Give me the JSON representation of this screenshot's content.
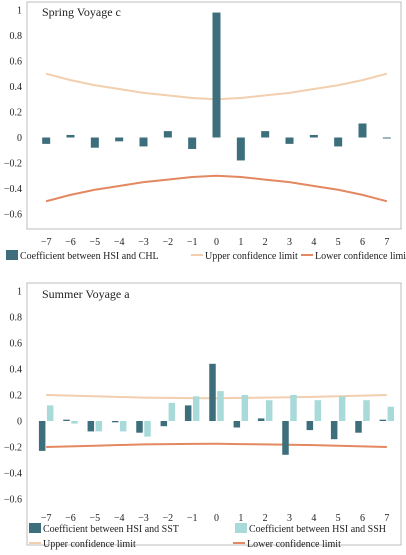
{
  "chart_data": [
    {
      "type": "bar",
      "title": "Spring Voyage c",
      "categories": [
        "−7",
        "−6",
        "−5",
        "−4",
        "−3",
        "−2",
        "−1",
        "0",
        "1",
        "2",
        "3",
        "4",
        "5",
        "6",
        "7"
      ],
      "y_ticks": [
        "−0.6",
        "−0.4",
        "−0.2",
        "0",
        "0.2",
        "0.4",
        "0.6",
        "0.8",
        "1"
      ],
      "ylim": [
        -0.6,
        1.0
      ],
      "grid": false,
      "series": [
        {
          "name": "Coefficient between HSI and CHL",
          "kind": "bar",
          "color": "#3d6e7c",
          "values": [
            -0.05,
            0.02,
            -0.08,
            -0.03,
            -0.07,
            0.05,
            -0.09,
            0.98,
            -0.18,
            0.05,
            -0.05,
            0.02,
            -0.07,
            0.11,
            0.0
          ]
        },
        {
          "name": "Upper confidence limit",
          "kind": "line",
          "color": "#f2cfae",
          "values": [
            0.5,
            0.45,
            0.41,
            0.38,
            0.35,
            0.33,
            0.31,
            0.3,
            0.31,
            0.33,
            0.35,
            0.38,
            0.41,
            0.45,
            0.5
          ]
        },
        {
          "name": "Lower confidence limit",
          "kind": "line",
          "color": "#e38860",
          "values": [
            -0.5,
            -0.45,
            -0.41,
            -0.38,
            -0.35,
            -0.33,
            -0.31,
            -0.3,
            -0.31,
            -0.33,
            -0.35,
            -0.38,
            -0.41,
            -0.45,
            -0.5
          ]
        }
      ],
      "legend": "bottom"
    },
    {
      "type": "bar",
      "title": "Summer Voyage a",
      "categories": [
        "−7",
        "−6",
        "−5",
        "−4",
        "−3",
        "−2",
        "−1",
        "0",
        "1",
        "2",
        "3",
        "4",
        "5",
        "6",
        "7"
      ],
      "y_ticks": [
        "−0.6",
        "−0.4",
        "−0.2",
        "0",
        "0.2",
        "0.4",
        "0.6",
        "0.8",
        "1"
      ],
      "ylim": [
        -0.6,
        1.0
      ],
      "grid": false,
      "series": [
        {
          "name": "Coefficient between HSI and SST",
          "kind": "bar",
          "color": "#3d6e7c",
          "values": [
            -0.23,
            0.01,
            -0.08,
            -0.01,
            -0.09,
            -0.04,
            0.12,
            0.44,
            -0.05,
            0.02,
            -0.26,
            -0.07,
            -0.14,
            -0.09,
            0.01
          ]
        },
        {
          "name": "Coefficient between HSI and SSH",
          "kind": "bar",
          "color": "#a8dad9",
          "values": [
            0.12,
            -0.02,
            -0.08,
            -0.08,
            -0.12,
            0.14,
            0.19,
            0.23,
            0.2,
            0.16,
            0.2,
            0.16,
            0.19,
            0.16,
            0.11
          ]
        },
        {
          "name": "Upper confidence limit",
          "kind": "line",
          "color": "#f2cfae",
          "values": [
            0.2,
            0.195,
            0.19,
            0.185,
            0.18,
            0.178,
            0.176,
            0.175,
            0.178,
            0.18,
            0.183,
            0.186,
            0.19,
            0.195,
            0.2
          ]
        },
        {
          "name": "Lower confidence limit",
          "kind": "line",
          "color": "#e38860",
          "values": [
            -0.2,
            -0.195,
            -0.19,
            -0.185,
            -0.18,
            -0.178,
            -0.176,
            -0.175,
            -0.178,
            -0.18,
            -0.183,
            -0.186,
            -0.19,
            -0.195,
            -0.2
          ]
        }
      ],
      "legend": "bottom"
    }
  ]
}
